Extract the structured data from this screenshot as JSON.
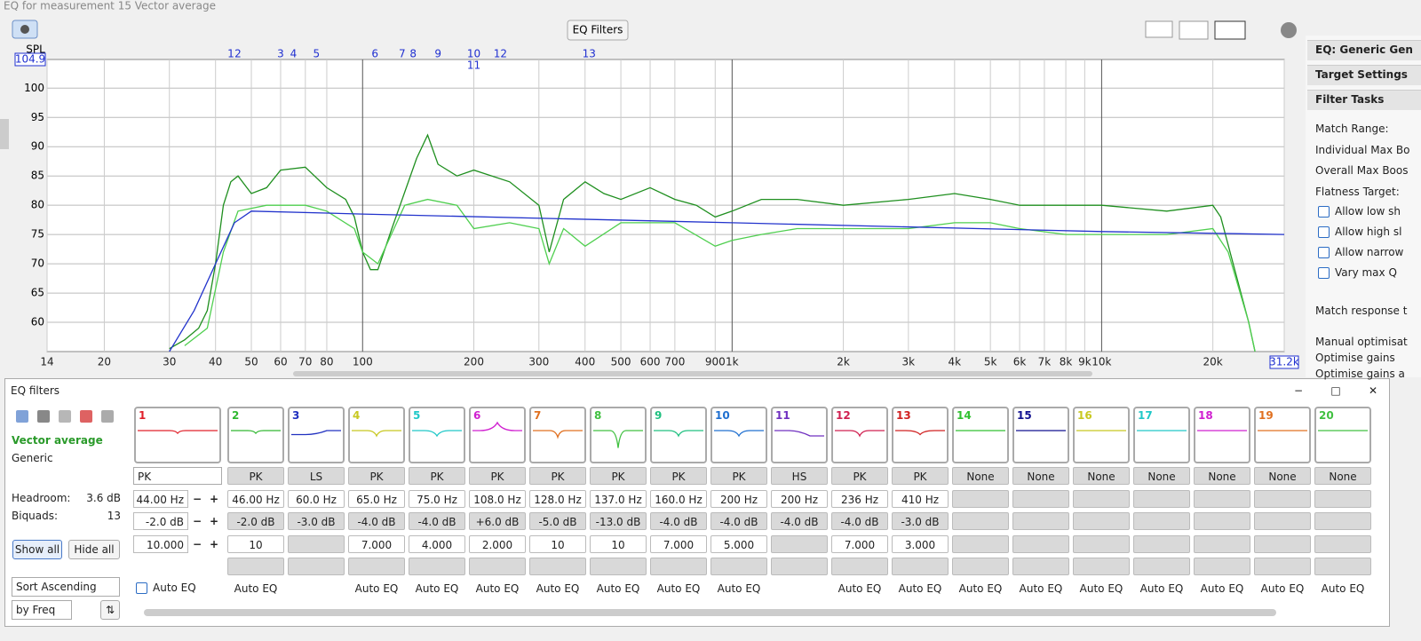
{
  "window_title": "EQ for measurement 15 Vector average",
  "toolbar": {
    "eq_filters_button": "EQ Filters"
  },
  "graph": {
    "y_label": "SPL",
    "log_x": true,
    "xlim": [
      14,
      31200
    ],
    "ylim": [
      55,
      104.9
    ],
    "yticks": [
      60,
      65,
      70,
      75,
      80,
      85,
      90,
      95,
      100
    ],
    "xticks": [
      14,
      20,
      30,
      40,
      50,
      60,
      70,
      80,
      100,
      200,
      300,
      400,
      500,
      600,
      700,
      900,
      {
        "value": 1000,
        "label": "1k"
      },
      {
        "value": 2000,
        "label": "2k"
      },
      {
        "value": 3000,
        "label": "3k"
      },
      {
        "value": 4000,
        "label": "4k"
      },
      {
        "value": 5000,
        "label": "5k"
      },
      {
        "value": 6000,
        "label": "6k"
      },
      {
        "value": 7000,
        "label": "7k"
      },
      {
        "value": 8000,
        "label": "8k"
      },
      {
        "value": 9000,
        "label": "9k"
      },
      {
        "value": 10000,
        "label": "10k"
      },
      {
        "value": 20000,
        "label": "20k"
      },
      {
        "value": 31200,
        "label": "31.2k"
      }
    ],
    "markers": [
      {
        "label": "1",
        "x": 44
      },
      {
        "label": "2",
        "x": 46
      },
      {
        "label": "3",
        "x": 60
      },
      {
        "label": "4",
        "x": 65
      },
      {
        "label": "5",
        "x": 75
      },
      {
        "label": "6",
        "x": 108
      },
      {
        "label": "7",
        "x": 128
      },
      {
        "label": "8",
        "x": 137
      },
      {
        "label": "9",
        "x": 160
      },
      {
        "label": "10",
        "x": 200
      },
      {
        "label": "11",
        "x": 200
      },
      {
        "label": "12",
        "x": 236
      },
      {
        "label": "13",
        "x": 410
      }
    ],
    "series": [
      {
        "color": "#1f8f1f",
        "x": [
          30,
          33,
          36,
          38,
          40,
          42,
          44,
          46,
          50,
          55,
          60,
          70,
          80,
          90,
          95,
          100,
          105,
          110,
          120,
          140,
          150,
          160,
          180,
          200,
          250,
          300,
          320,
          350,
          400,
          450,
          500,
          600,
          700,
          800,
          900,
          1000,
          1200,
          1500,
          2000,
          3000,
          4000,
          5000,
          6000,
          8000,
          10000,
          15000,
          20000,
          21000,
          25000,
          26000
        ],
        "values": [
          55.5,
          57,
          59,
          62,
          70,
          80,
          84,
          85,
          82,
          83,
          86,
          86.5,
          83,
          81,
          78,
          72,
          69,
          69,
          76,
          88,
          92,
          87,
          85,
          86,
          84,
          80,
          72,
          81,
          84,
          82,
          81,
          83,
          81,
          80,
          78,
          79,
          81,
          81,
          80,
          81,
          82,
          81,
          80,
          80,
          80,
          79,
          80,
          78,
          60,
          55
        ]
      },
      {
        "color": "#4fcf4f",
        "x": [
          33,
          38,
          42,
          46,
          55,
          70,
          80,
          95,
          100,
          110,
          130,
          150,
          180,
          200,
          250,
          300,
          320,
          350,
          400,
          500,
          700,
          900,
          1000,
          1200,
          1500,
          2000,
          3000,
          4000,
          5000,
          6000,
          8000,
          10000,
          15000,
          20000,
          22000,
          25000,
          26000
        ],
        "values": [
          56,
          59,
          72,
          79,
          80,
          80,
          79,
          76,
          72,
          70,
          80,
          81,
          80,
          76,
          77,
          76,
          70,
          76,
          73,
          77,
          77,
          73,
          74,
          75,
          76,
          76,
          76,
          77,
          77,
          76,
          75,
          75,
          75,
          76,
          72,
          60,
          55
        ]
      },
      {
        "color": "#2233cc",
        "x": [
          30,
          35,
          40,
          45,
          50,
          100,
          1000,
          10000,
          31200
        ],
        "values": [
          55,
          62,
          70,
          77,
          79,
          78.5,
          77,
          75.5,
          75
        ]
      }
    ]
  },
  "side_panel": {
    "headers": [
      "EQ: Generic Gen",
      "Target Settings",
      "Filter Tasks"
    ],
    "labels": [
      "Match Range:",
      "Individual Max Bo",
      "Overall Max Boos",
      "Flatness Target:"
    ],
    "checkboxes": [
      "Allow low sh",
      "Allow high sl",
      "Allow narrow",
      "Vary max Q"
    ],
    "footer": [
      "Match response t",
      "Manual optimisat",
      "Optimise gains",
      "Optimise gains a"
    ]
  },
  "filters_panel": {
    "title": "EQ filters",
    "measurement": "Vector average",
    "eq_type": "Generic",
    "headroom_label": "Headroom:",
    "headroom": "3.6 dB",
    "biquads_label": "Biquads:",
    "biquads": "13",
    "show_all": "Show all",
    "hide_all": "Hide all",
    "sort": "Sort Ascending",
    "sort_by": "by Freq",
    "filters": [
      {
        "number": "1",
        "color": "#e0202a",
        "type": "PK",
        "freq": "44.00 Hz",
        "gain": "-2.0 dB",
        "q": "10.000",
        "auto_eq": "Auto EQ"
      },
      {
        "number": "2",
        "color": "#30b830",
        "type": "PK",
        "freq": "46.00 Hz",
        "gain": "-2.0 dB",
        "q": "10",
        "auto_eq": "Auto EQ"
      },
      {
        "number": "3",
        "color": "#2030c0",
        "type": "LS",
        "freq": "60.0 Hz",
        "gain": "-3.0 dB"
      },
      {
        "number": "4",
        "color": "#c8c820",
        "type": "PK",
        "freq": "65.0 Hz",
        "gain": "-4.0 dB",
        "q": "7.000",
        "auto_eq": "Auto EQ"
      },
      {
        "number": "5",
        "color": "#20c8c8",
        "type": "PK",
        "freq": "75.0 Hz",
        "gain": "-4.0 dB",
        "q": "4.000",
        "auto_eq": "Auto EQ"
      },
      {
        "number": "6",
        "color": "#d020d0",
        "type": "PK",
        "freq": "108.0 Hz",
        "gain": "+6.0 dB",
        "q": "2.000",
        "auto_eq": "Auto EQ"
      },
      {
        "number": "7",
        "color": "#e07020",
        "type": "PK",
        "freq": "128.0 Hz",
        "gain": "-5.0 dB",
        "q": "10",
        "auto_eq": "Auto EQ"
      },
      {
        "number": "8",
        "color": "#40c040",
        "type": "PK",
        "freq": "137.0 Hz",
        "gain": "-13.0 dB",
        "q": "10",
        "auto_eq": "Auto EQ"
      },
      {
        "number": "9",
        "color": "#20c080",
        "type": "PK",
        "freq": "160.0 Hz",
        "gain": "-4.0 dB",
        "q": "7.000",
        "auto_eq": "Auto EQ"
      },
      {
        "number": "10",
        "color": "#2070d0",
        "type": "PK",
        "freq": "200 Hz",
        "gain": "-4.0 dB",
        "q": "5.000",
        "auto_eq": "Auto EQ"
      },
      {
        "number": "11",
        "color": "#7030c0",
        "type": "HS",
        "freq": "200 Hz",
        "gain": "-4.0 dB"
      },
      {
        "number": "12",
        "color": "#d02050",
        "type": "PK",
        "freq": "236 Hz",
        "gain": "-4.0 dB",
        "q": "7.000",
        "auto_eq": "Auto EQ"
      },
      {
        "number": "13",
        "color": "#d02020",
        "type": "PK",
        "freq": "410 Hz",
        "gain": "-3.0 dB",
        "q": "3.000",
        "auto_eq": "Auto EQ"
      },
      {
        "number": "14",
        "color": "#30c030",
        "type": "None",
        "auto_eq": "Auto EQ"
      },
      {
        "number": "15",
        "color": "#101090",
        "type": "None",
        "auto_eq": "Auto EQ"
      },
      {
        "number": "16",
        "color": "#c8c820",
        "type": "None",
        "auto_eq": "Auto EQ"
      },
      {
        "number": "17",
        "color": "#20c8c8",
        "type": "None",
        "auto_eq": "Auto EQ"
      },
      {
        "number": "18",
        "color": "#d020d0",
        "type": "None",
        "auto_eq": "Auto EQ"
      },
      {
        "number": "19",
        "color": "#e07020",
        "type": "None",
        "auto_eq": "Auto EQ"
      },
      {
        "number": "20",
        "color": "#40c040",
        "type": "None",
        "auto_eq": "Auto EQ"
      }
    ]
  }
}
